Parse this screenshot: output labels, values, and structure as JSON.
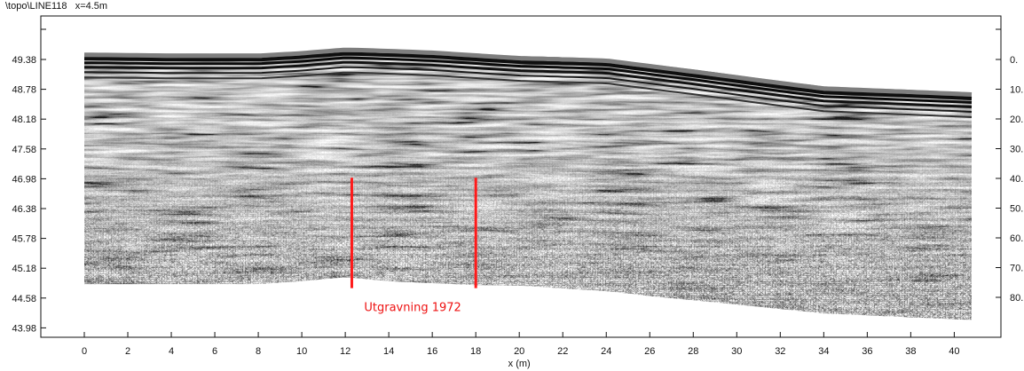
{
  "header": {
    "path": "\\topo\\LINE118",
    "position": "x=4.5m"
  },
  "chart_data": {
    "type": "radargram",
    "xlabel": "x (m)",
    "xlim": [
      0,
      40.8
    ],
    "x_ticks": [
      "0",
      "2",
      "4",
      "6",
      "8",
      "10",
      "12",
      "14",
      "16",
      "18",
      "20",
      "22",
      "24",
      "26",
      "28",
      "30",
      "32",
      "34",
      "36",
      "38",
      "40"
    ],
    "left_axis": {
      "ticks": [
        "49.38",
        "48.78",
        "48.18",
        "47.58",
        "46.98",
        "46.38",
        "45.78",
        "45.18",
        "44.58",
        "43.98"
      ]
    },
    "right_axis": {
      "ticks": [
        "0.",
        "10.",
        "20.",
        "30.",
        "40.",
        "50.",
        "60.",
        "70.",
        "80."
      ]
    },
    "surface_elevation": {
      "x": [
        0,
        4,
        8,
        10,
        12,
        13,
        16,
        20,
        24,
        28,
        32,
        34,
        38,
        40.8
      ],
      "y": [
        49.52,
        49.5,
        49.5,
        49.55,
        49.62,
        49.61,
        49.56,
        49.45,
        49.4,
        49.18,
        48.95,
        48.84,
        48.77,
        48.72
      ]
    },
    "profile_bottom_elevation": {
      "x": [
        0,
        8,
        10,
        12,
        14,
        18,
        20,
        24,
        26,
        30,
        34,
        40.8
      ],
      "y": [
        44.86,
        44.86,
        44.92,
        45.0,
        44.92,
        44.84,
        44.83,
        44.72,
        44.62,
        44.45,
        44.27,
        44.14
      ]
    },
    "markers": [
      {
        "x": 12.3,
        "y_top": 47.0,
        "y_bottom": 44.78
      },
      {
        "x": 18.0,
        "y_top": 47.0,
        "y_bottom": 44.78
      }
    ],
    "annotation": {
      "text": "Utgravning 1972",
      "x": 15.1,
      "y": 44.32
    },
    "colors": {
      "marker": "#ff1a1a",
      "annotation": "#e11111",
      "surface": "#0f0f0f"
    }
  }
}
